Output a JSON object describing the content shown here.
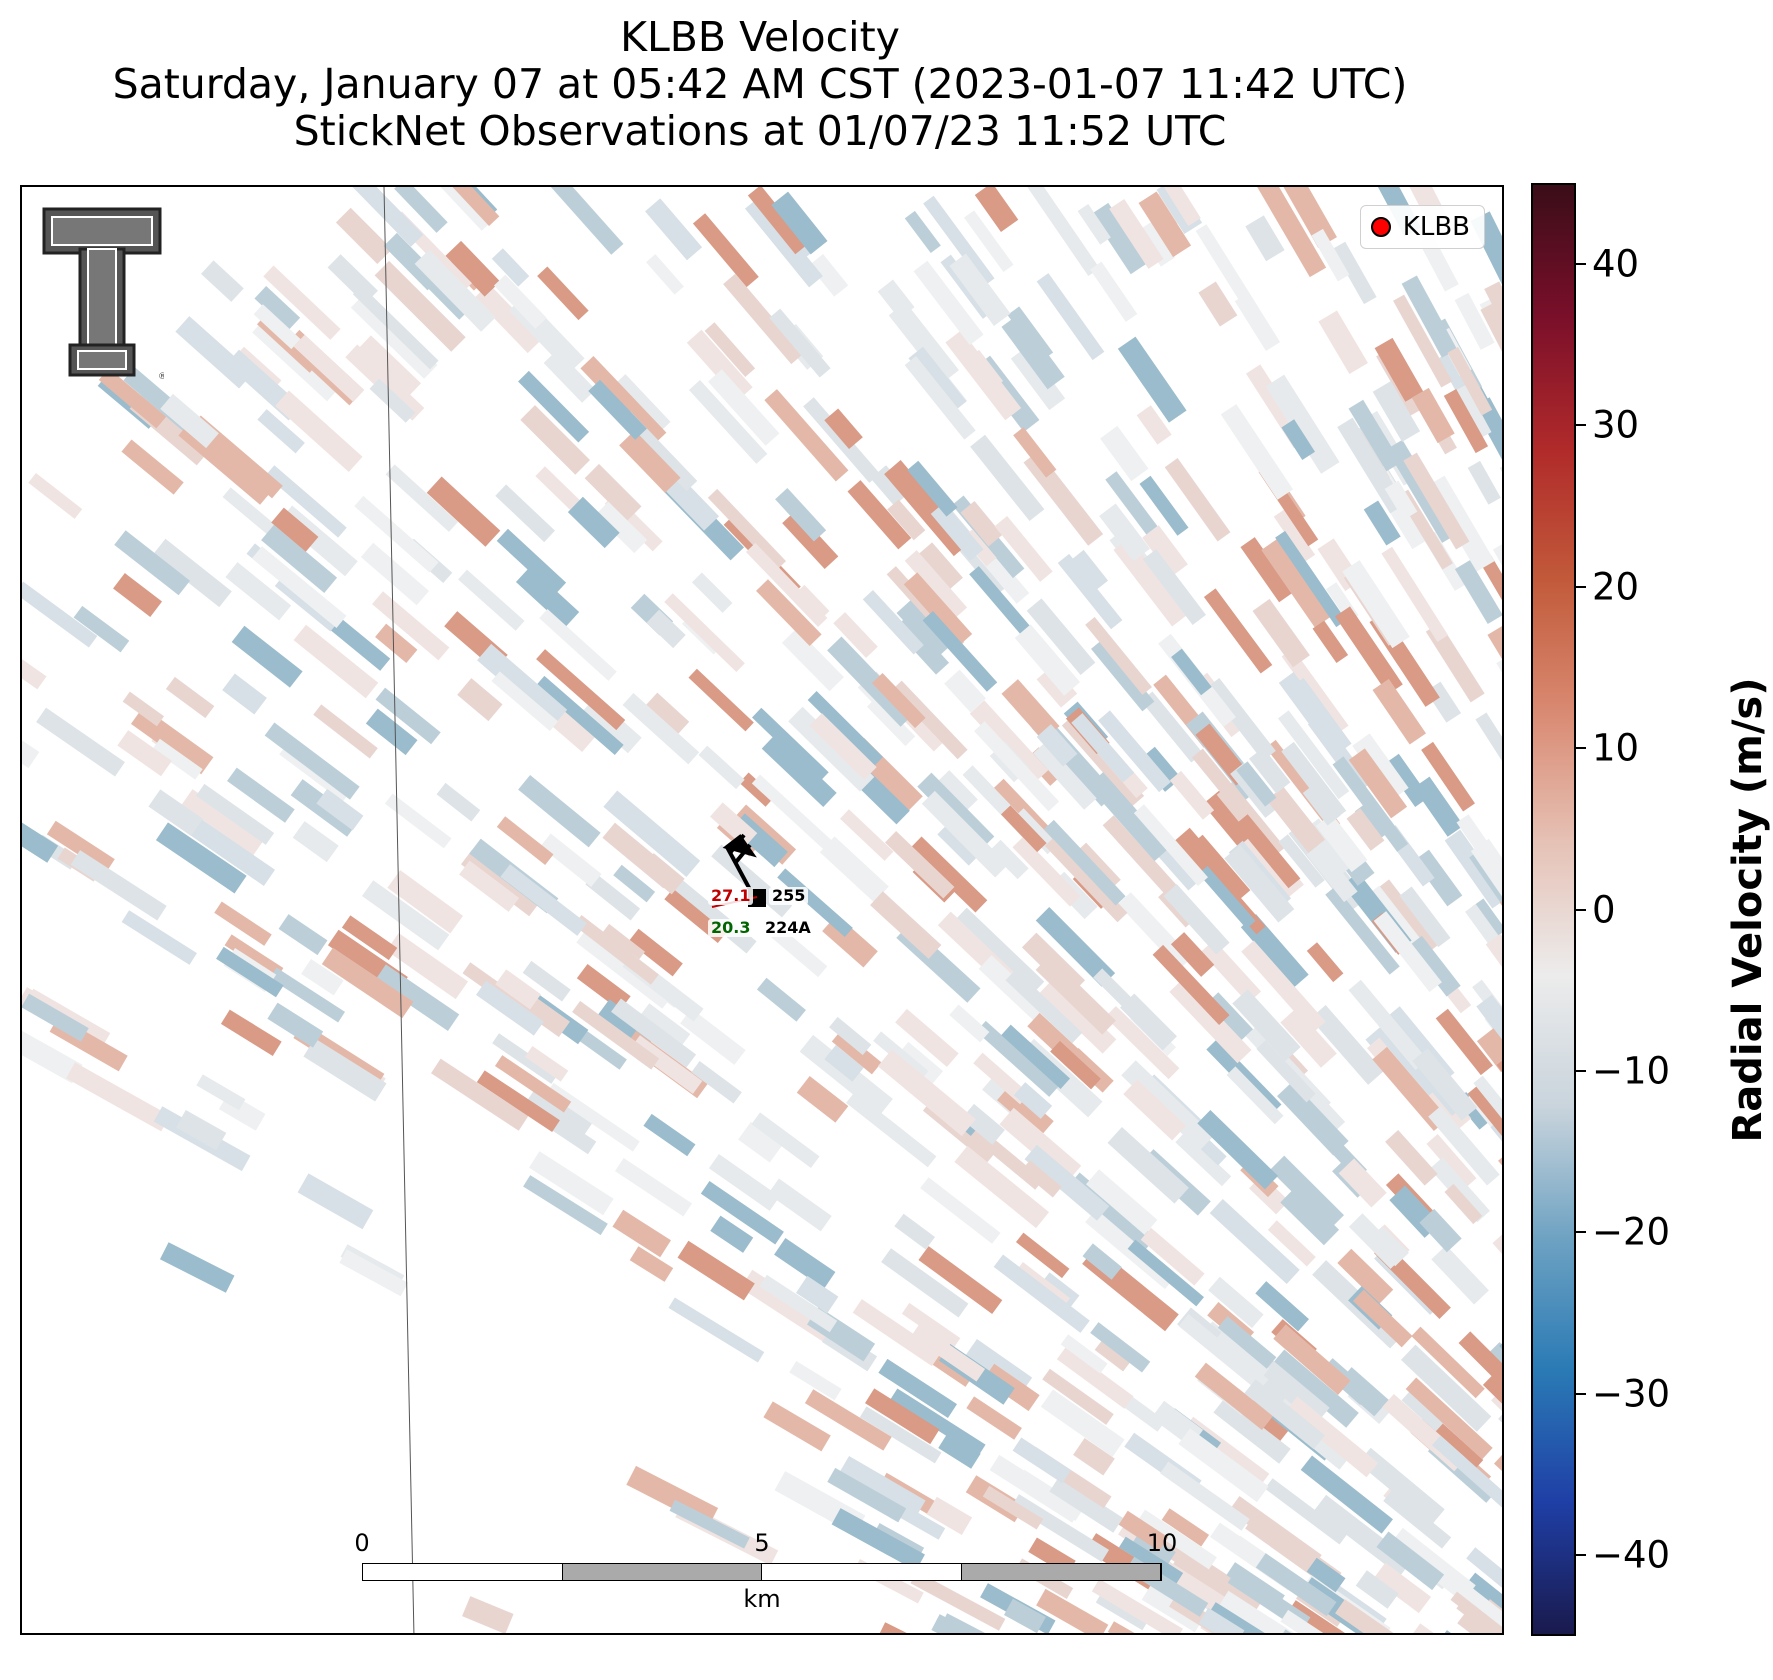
{
  "title": {
    "line1": "KLBB Velocity",
    "line2": "Saturday, January 07 at 05:42 AM CST (2023-01-07 11:42 UTC)",
    "line3": "StickNet Observations at 01/07/23 11:52 UTC"
  },
  "legend": {
    "label": "KLBB",
    "marker_color": "#ff0000"
  },
  "logo": {
    "icon": "texas-tech-double-t-logo"
  },
  "stations": [
    {
      "id": "255",
      "temp_label": "27.1",
      "temp_color": "#c00000"
    },
    {
      "id": "224A",
      "dewpoint_label": "20.3",
      "dewpoint_color": "#006400"
    }
  ],
  "scalebar": {
    "ticks": [
      "0",
      "5",
      "10"
    ],
    "unit": "km"
  },
  "colorbar": {
    "title": "Radial Velocity (m/s)",
    "range": [
      -45,
      45
    ],
    "ticks": [
      {
        "value": 40,
        "label": "40"
      },
      {
        "value": 30,
        "label": "30"
      },
      {
        "value": 20,
        "label": "20"
      },
      {
        "value": 10,
        "label": "10"
      },
      {
        "value": 0,
        "label": "0"
      },
      {
        "value": -10,
        "label": "−10"
      },
      {
        "value": -20,
        "label": "−20"
      },
      {
        "value": -30,
        "label": "−30"
      },
      {
        "value": -40,
        "label": "−40"
      }
    ],
    "colors": [
      "#1a1a4d",
      "#1f3fa6",
      "#2a7ab5",
      "#6ea2c2",
      "#c9d4dc",
      "#ececec",
      "#e6c2b6",
      "#d98a72",
      "#c25a3a",
      "#b02a2a",
      "#7a0f2a",
      "#3a0d18"
    ]
  }
}
